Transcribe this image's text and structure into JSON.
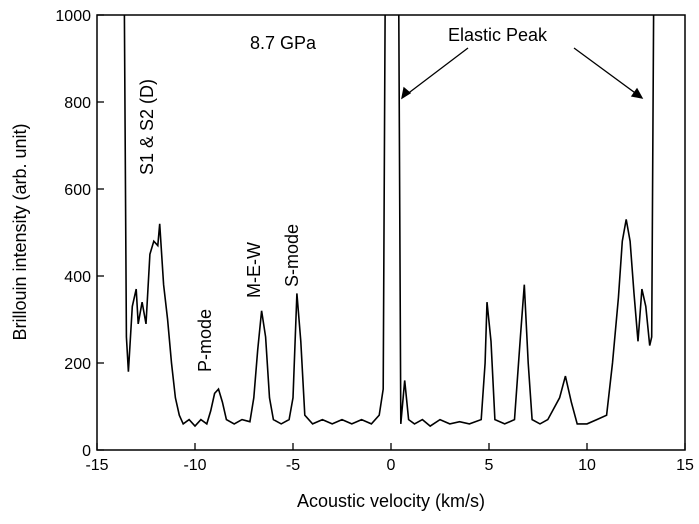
{
  "chart_data": {
    "type": "line",
    "xlabel": "Acoustic velocity (km/s)",
    "ylabel": "Brillouin intensity (arb. unit)",
    "annotations": [
      "8.7 GPa",
      "Elastic Peak",
      "S1 & S2 (D)",
      "P-mode",
      "M-E-W",
      "S-mode"
    ],
    "xlim": [
      -15,
      15
    ],
    "ylim": [
      0,
      1000
    ],
    "xticks": [
      -15,
      -10,
      -5,
      0,
      5,
      10,
      15
    ],
    "yticks": [
      0,
      200,
      400,
      600,
      800,
      1000
    ],
    "color": "#000000",
    "x": [
      -13.6,
      -13.5,
      -13.4,
      -13.2,
      -13.0,
      -12.9,
      -12.7,
      -12.5,
      -12.3,
      -12.1,
      -11.9,
      -11.8,
      -11.6,
      -11.4,
      -11.2,
      -11.0,
      -10.8,
      -10.6,
      -10.3,
      -10.0,
      -9.7,
      -9.4,
      -9.2,
      -9.0,
      -8.8,
      -8.6,
      -8.4,
      -8.0,
      -7.6,
      -7.2,
      -7.0,
      -6.8,
      -6.6,
      -6.4,
      -6.2,
      -6.0,
      -5.6,
      -5.2,
      -5.0,
      -4.8,
      -4.6,
      -4.4,
      -4.0,
      -3.5,
      -3.0,
      -2.5,
      -2.0,
      -1.5,
      -1.0,
      -0.6,
      -0.4,
      -0.3,
      0,
      0.4,
      0.5,
      0.7,
      0.9,
      1.2,
      1.6,
      2.0,
      2.5,
      3.0,
      3.5,
      4.0,
      4.6,
      4.8,
      4.9,
      5.1,
      5.3,
      5.8,
      6.3,
      6.6,
      6.8,
      7.0,
      7.2,
      7.6,
      8.0,
      8.6,
      8.9,
      9.2,
      9.5,
      10.0,
      10.5,
      11.0,
      11.3,
      11.6,
      11.8,
      12.0,
      12.2,
      12.4,
      12.6,
      12.8,
      13.0,
      13.2,
      13.3,
      13.4
    ],
    "values": [
      1000,
      260,
      180,
      330,
      370,
      290,
      340,
      290,
      450,
      480,
      470,
      520,
      380,
      300,
      200,
      120,
      80,
      60,
      70,
      55,
      70,
      60,
      90,
      130,
      140,
      110,
      70,
      60,
      70,
      65,
      120,
      230,
      320,
      260,
      120,
      70,
      60,
      70,
      120,
      360,
      250,
      80,
      60,
      70,
      60,
      70,
      60,
      70,
      60,
      80,
      140,
      1000,
      null,
      1000,
      60,
      160,
      70,
      60,
      70,
      55,
      70,
      60,
      65,
      60,
      70,
      200,
      340,
      250,
      70,
      60,
      70,
      260,
      380,
      200,
      70,
      60,
      70,
      120,
      170,
      110,
      60,
      60,
      70,
      80,
      200,
      350,
      480,
      530,
      480,
      360,
      250,
      370,
      330,
      240,
      260,
      1000
    ]
  }
}
